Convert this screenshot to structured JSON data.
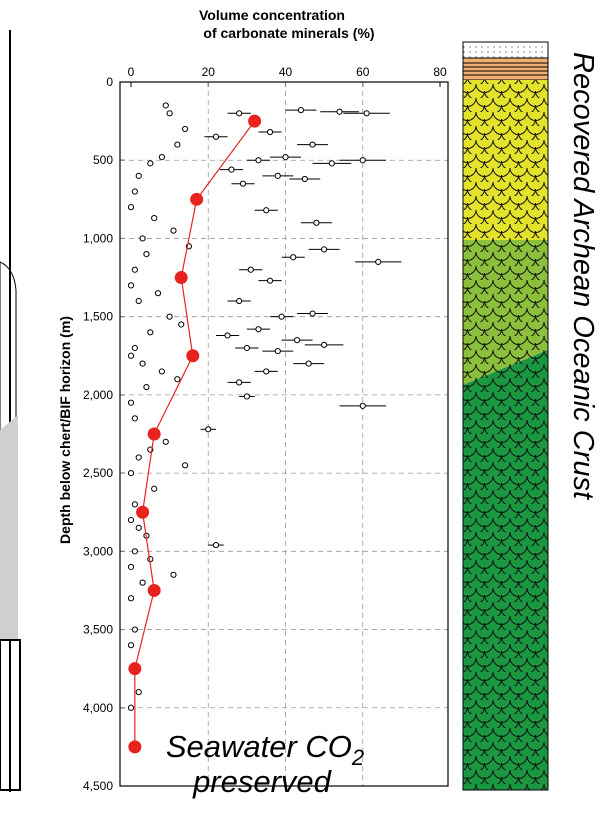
{
  "chart_data": {
    "type": "scatter",
    "title": [
      "Volume concentration",
      "of carbonate minerals (%)"
    ],
    "ylabel": "Depth below  chert/BIF horizon (m)",
    "side_label": "Recovered Archean Oceanic Crust",
    "annotation": {
      "line1": "Seawater CO",
      "sub": "2",
      "line2": "preserved"
    },
    "xlim": [
      0,
      80
    ],
    "xticks": [
      0,
      20,
      40,
      60,
      80
    ],
    "ylim": [
      4500,
      0
    ],
    "yticks": [
      0,
      500,
      {
        "value": 1000,
        "label": "1,000"
      },
      {
        "value": 1500,
        "label": "1,500"
      },
      {
        "value": 2000,
        "label": "2,000"
      },
      {
        "value": 2500,
        "label": "2,500"
      },
      {
        "value": 3000,
        "label": "3,000"
      },
      {
        "value": 3500,
        "label": "3,500"
      },
      {
        "value": 4000,
        "label": "4,000"
      },
      {
        "value": 4500,
        "label": "4,500"
      }
    ],
    "grid": true,
    "series": [
      {
        "color": "#000000",
        "x": [
          28,
          44,
          54,
          61,
          36,
          22,
          47,
          33,
          40,
          52,
          60,
          26,
          38,
          45,
          29,
          35,
          48,
          50,
          42,
          64,
          31,
          36,
          28,
          39,
          47,
          33,
          25,
          43,
          50,
          30,
          38,
          46,
          35,
          60,
          28,
          20,
          22,
          30
        ],
        "y": [
          200,
          180,
          190,
          200,
          320,
          350,
          400,
          500,
          480,
          520,
          500,
          560,
          600,
          620,
          650,
          820,
          900,
          1070,
          1120,
          1150,
          1200,
          1270,
          1400,
          1500,
          1480,
          1580,
          1620,
          1650,
          1680,
          1700,
          1720,
          1800,
          1850,
          2070,
          1920,
          2220,
          2960,
          2010
        ],
        "xerr": [
          3,
          4,
          5,
          6,
          3,
          3,
          4,
          3,
          4,
          5,
          6,
          3,
          4,
          4,
          3,
          3,
          4,
          4,
          3,
          6,
          3,
          3,
          3,
          3,
          4,
          3,
          3,
          4,
          5,
          3,
          4,
          4,
          3,
          6,
          3,
          2,
          2,
          2
        ]
      },
      {
        "color": "#000000",
        "x": [
          9,
          10,
          14,
          12,
          5,
          8,
          2,
          1,
          0,
          6,
          11,
          3,
          15,
          4,
          1,
          0,
          7,
          2,
          10,
          13,
          5,
          1,
          0,
          3,
          8,
          12,
          4,
          0,
          1,
          9,
          5,
          2,
          0,
          14,
          6,
          1,
          0,
          2,
          4,
          1,
          0,
          5,
          3,
          0,
          1,
          0,
          11,
          2,
          0,
          1
        ],
        "y": [
          150,
          200,
          300,
          400,
          520,
          480,
          600,
          700,
          800,
          870,
          950,
          1000,
          1050,
          1100,
          1200,
          1300,
          1350,
          1400,
          1500,
          1550,
          1600,
          1700,
          1750,
          1800,
          1850,
          1900,
          1950,
          2050,
          2150,
          2300,
          2350,
          2400,
          2500,
          2450,
          2600,
          2700,
          2800,
          2850,
          2900,
          3000,
          3100,
          3050,
          3200,
          3300,
          3500,
          3600,
          3150,
          3900,
          4000,
          4250
        ]
      },
      {
        "color": "#e8231e",
        "line": true,
        "x": [
          32,
          17,
          13,
          16,
          6,
          3,
          6,
          1,
          1
        ],
        "y": [
          250,
          750,
          1250,
          1750,
          2250,
          2750,
          3250,
          3750,
          4250
        ]
      }
    ]
  }
}
